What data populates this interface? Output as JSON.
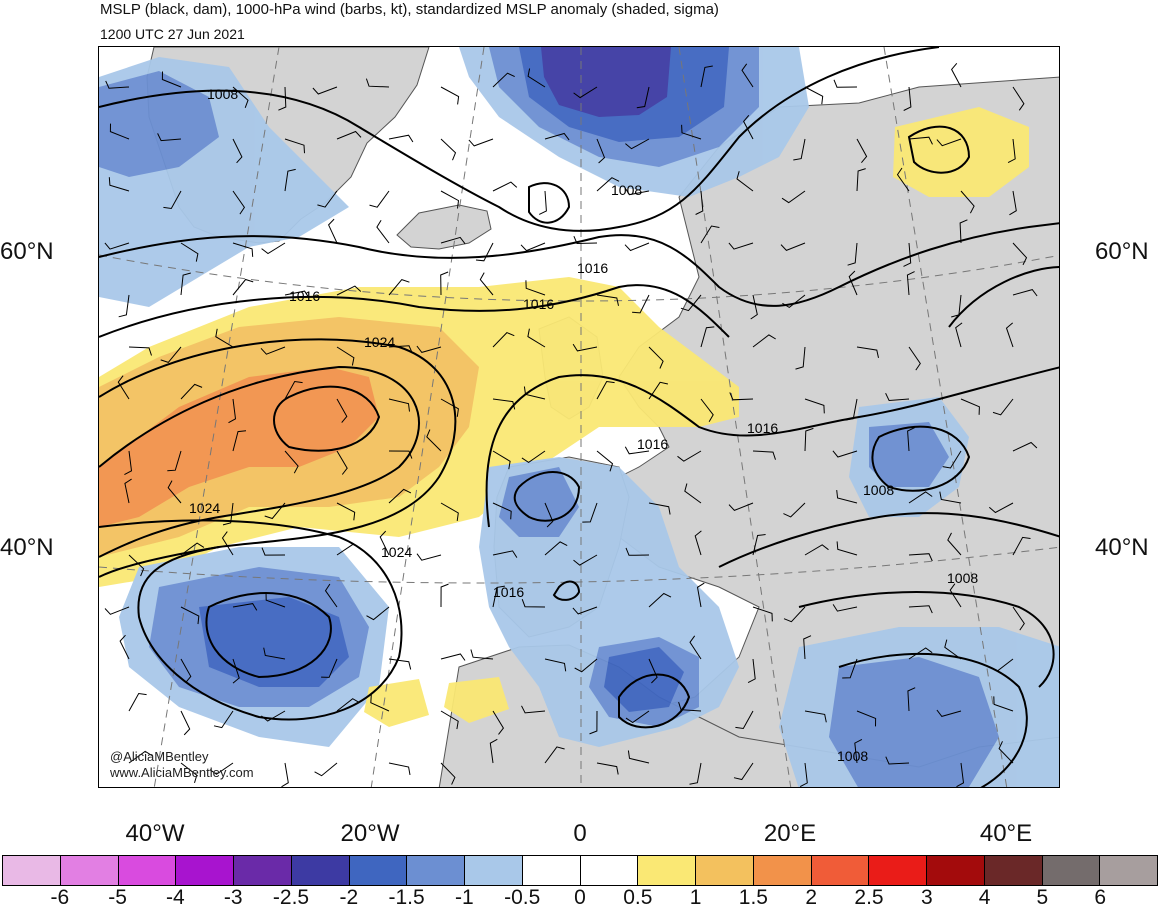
{
  "header": {
    "title": "MSLP (black, dam), 1000-hPa wind (barbs, kt), standardized MSLP anomaly (shaded, sigma)",
    "valid_time": "1200 UTC 27 Jun 2021"
  },
  "axes": {
    "lat_labels": [
      "60°N",
      "40°N"
    ],
    "lon_labels": [
      "40°W",
      "20°W",
      "0",
      "20°E",
      "40°E"
    ]
  },
  "isobar_labels": [
    "1008",
    "1008",
    "1016",
    "1016",
    "1024",
    "1024",
    "1024",
    "1016",
    "1016",
    "1016",
    "1008",
    "1008",
    "1016",
    "1008"
  ],
  "credit": {
    "handle": "@AliciaMBentley",
    "site": "www.AliciaMBentley.com"
  },
  "colorbar": {
    "ticks": [
      "-6",
      "-5",
      "-4",
      "-3",
      "-2.5",
      "-2",
      "-1.5",
      "-1",
      "-0.5",
      "0",
      "0.5",
      "1",
      "1.5",
      "2",
      "2.5",
      "3",
      "4",
      "5",
      "6"
    ],
    "colors": [
      "#e9b9e6",
      "#e27fe3",
      "#d94bdf",
      "#a814cf",
      "#6a2aa8",
      "#3d3aa3",
      "#3f66c0",
      "#6c8fd2",
      "#a9c8e9",
      "#ffffff",
      "#ffffff",
      "#fae874",
      "#f3c15e",
      "#f2924a",
      "#f05c38",
      "#ea1c18",
      "#a30b0c",
      "#6a2828",
      "#746c6c",
      "#a79e9e"
    ]
  },
  "colors": {
    "land": "#d3d3d3",
    "ocean": "#ffffff",
    "isobar": "#000000"
  }
}
